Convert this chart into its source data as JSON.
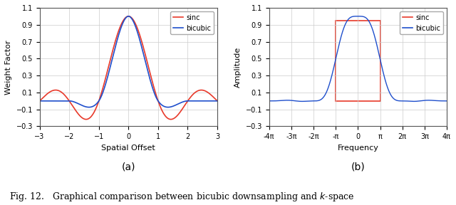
{
  "fig_width": 6.4,
  "fig_height": 2.88,
  "dpi": 100,
  "background_color": "#ffffff",
  "subplot_a": {
    "xlim": [
      -3,
      3
    ],
    "ylim": [
      -0.3,
      1.1
    ],
    "yticks": [
      -0.3,
      -0.1,
      0.1,
      0.3,
      0.5,
      0.7,
      0.9,
      1.1
    ],
    "xticks": [
      -3,
      -2,
      -1,
      0,
      1,
      2,
      3
    ],
    "xlabel": "Spatial Offset",
    "ylabel": "Weight Factor",
    "label_a": "(a)",
    "sinc_color": "#e8392a",
    "bicubic_color": "#1f4fcc",
    "legend_labels": [
      "sinc",
      "bicubic"
    ]
  },
  "subplot_b": {
    "xlim": [
      -4,
      4
    ],
    "ylim": [
      -0.3,
      1.1
    ],
    "yticks": [
      -0.3,
      -0.1,
      0.1,
      0.3,
      0.5,
      0.7,
      0.9,
      1.1
    ],
    "xtick_vals": [
      -4,
      -3,
      -2,
      -1,
      0,
      1,
      2,
      3,
      4
    ],
    "xtick_labels": [
      "-4π",
      "-3π",
      "-2π",
      "-π",
      "0",
      "π",
      "2π",
      "3π",
      "4π"
    ],
    "xlabel": "Frequency",
    "ylabel": "Amplitude",
    "label_b": "(b)",
    "sinc_color": "#e8392a",
    "bicubic_color": "#1f4fcc",
    "legend_labels": [
      "sinc",
      "bicubic"
    ]
  },
  "caption": "Fig. 12.   Graphical comparison between bicubic downsampling and $k$-space",
  "caption_fontsize": 9
}
